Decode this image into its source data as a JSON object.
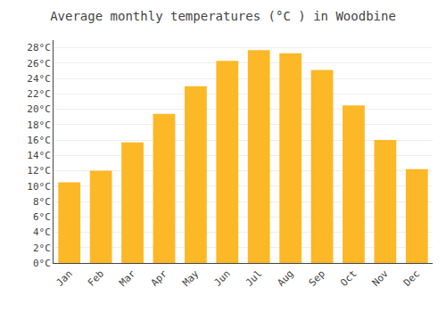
{
  "chart_data": {
    "type": "bar",
    "title": "Average monthly temperatures (°C ) in Woodbine",
    "categories": [
      "Jan",
      "Feb",
      "Mar",
      "Apr",
      "May",
      "Jun",
      "Jul",
      "Aug",
      "Sep",
      "Oct",
      "Nov",
      "Dec"
    ],
    "values": [
      10.5,
      12.0,
      15.7,
      19.4,
      23.0,
      26.3,
      27.7,
      27.3,
      25.1,
      20.5,
      16.0,
      12.2
    ],
    "color": "#FDB827",
    "ylim": [
      0,
      29
    ],
    "yticks": [
      {
        "value": 0,
        "label": "0°C"
      },
      {
        "value": 2,
        "label": "2°C"
      },
      {
        "value": 4,
        "label": "4°C"
      },
      {
        "value": 6,
        "label": "6°C"
      },
      {
        "value": 8,
        "label": "8°C"
      },
      {
        "value": 10,
        "label": "10°C"
      },
      {
        "value": 12,
        "label": "12°C"
      },
      {
        "value": 14,
        "label": "14°C"
      },
      {
        "value": 16,
        "label": "16°C"
      },
      {
        "value": 18,
        "label": "18°C"
      },
      {
        "value": 20,
        "label": "20°C"
      },
      {
        "value": 22,
        "label": "22°C"
      },
      {
        "value": 24,
        "label": "24°C"
      },
      {
        "value": 26,
        "label": "26°C"
      },
      {
        "value": 28,
        "label": "28°C"
      }
    ],
    "grid": true
  }
}
